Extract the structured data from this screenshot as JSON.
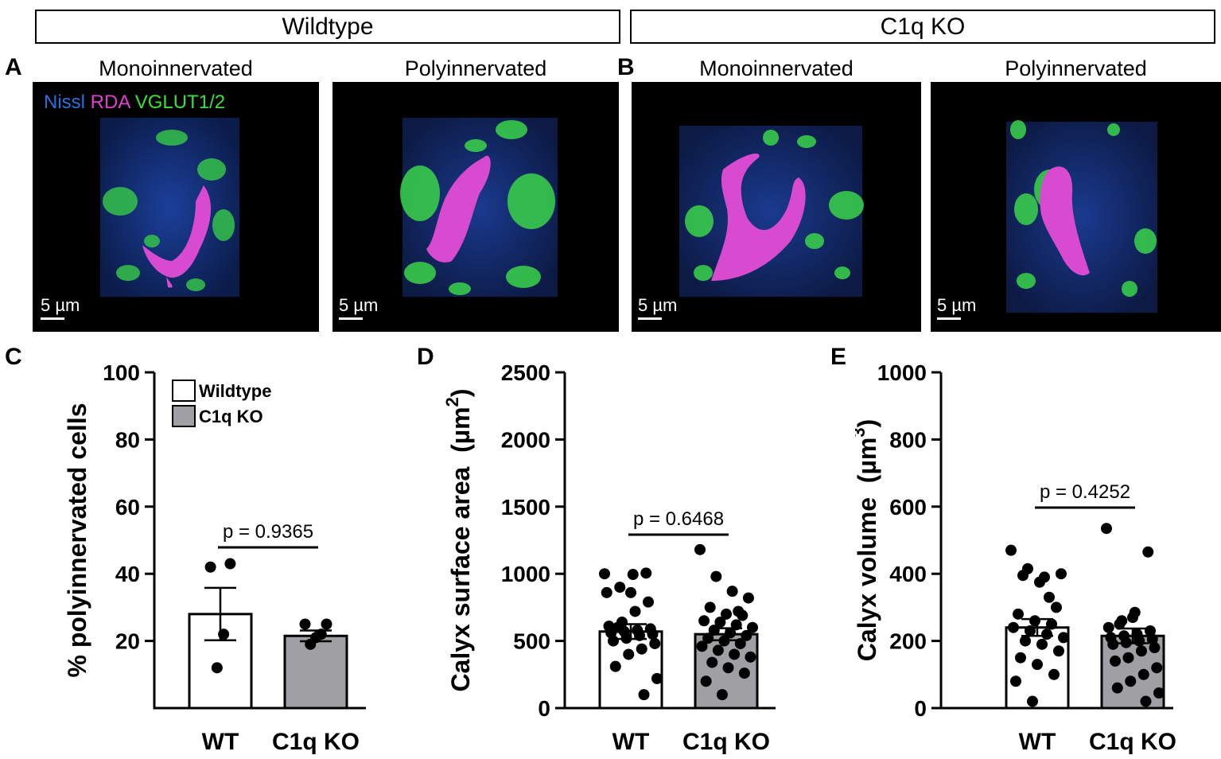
{
  "groups": {
    "wildtype": "Wildtype",
    "c1q_ko": "C1q KO"
  },
  "panels": {
    "A": "A",
    "B": "B",
    "C": "C",
    "D": "D",
    "E": "E"
  },
  "images": [
    {
      "title": "Monoinnervated",
      "scale": "5 µm"
    },
    {
      "title": "Polyinnervated",
      "scale": "5 µm"
    },
    {
      "title": "Monoinnervated",
      "scale": "5 µm"
    },
    {
      "title": "Polyinnervated",
      "scale": "5 µm"
    }
  ],
  "stain_legend": {
    "nissl": "Nissl",
    "rda": "RDA",
    "vglut": "VGLUT1/2",
    "colors": {
      "nissl": "#1f6fd6",
      "rda": "#e040d0",
      "vglut": "#38e038"
    }
  },
  "chart_data": [
    {
      "type": "bar",
      "panel": "C",
      "categories": [
        "WT",
        "C1q KO"
      ],
      "ylabel": "% polyinnervated cells",
      "ylim": [
        0,
        100
      ],
      "yticks": [
        20,
        40,
        60,
        80,
        100
      ],
      "bar_values": [
        28,
        21.5
      ],
      "sem": [
        7.8,
        1.6
      ],
      "points": [
        [
          42,
          43,
          22,
          12
        ],
        [
          25,
          25,
          22,
          21,
          19
        ]
      ],
      "pvalue": "p = 0.9365",
      "legend": [
        {
          "name": "Wildtype",
          "color": "#ffffff"
        },
        {
          "name": "C1q KO",
          "color": "#a0a0a4"
        }
      ],
      "bar_colors": [
        "#ffffff",
        "#a0a0a4"
      ]
    },
    {
      "type": "bar",
      "panel": "D",
      "categories": [
        "WT",
        "C1q KO"
      ],
      "ylabel": "Calyx surface area",
      "ylabel_unit": "(µm",
      "ylabel_sup": "2",
      "ylabel_close": ")",
      "ylim": [
        0,
        2500
      ],
      "yticks": [
        0,
        500,
        1000,
        1500,
        2000,
        2500
      ],
      "bar_values": [
        570,
        550
      ],
      "sem": [
        55,
        45
      ],
      "points": [
        [
          1000,
          1005,
          995,
          900,
          860,
          790,
          720,
          640,
          610,
          590,
          580,
          570,
          560,
          550,
          540,
          520,
          500,
          480,
          440,
          400,
          310,
          220,
          100,
          860,
          600
        ],
        [
          1180,
          980,
          870,
          820,
          750,
          700,
          690,
          650,
          640,
          620,
          600,
          580,
          560,
          540,
          520,
          500,
          480,
          460,
          430,
          400,
          380,
          340,
          300,
          260,
          200,
          100,
          720
        ]
      ],
      "pvalue": "p = 0.6468",
      "bar_colors": [
        "#ffffff",
        "#a0a0a4"
      ]
    },
    {
      "type": "bar",
      "panel": "E",
      "categories": [
        "WT",
        "C1q KO"
      ],
      "ylabel": "Calyx volume",
      "ylabel_unit": "(µm",
      "ylabel_sup": "3",
      "ylabel_close": ")",
      "ylim": [
        0,
        1000
      ],
      "yticks": [
        0,
        200,
        400,
        600,
        800,
        1000
      ],
      "bar_values": [
        240,
        215
      ],
      "sem": [
        25,
        22
      ],
      "points": [
        [
          470,
          415,
          390,
          400,
          395,
          375,
          300,
          280,
          260,
          250,
          240,
          230,
          220,
          210,
          200,
          190,
          170,
          150,
          130,
          100,
          80,
          20,
          330
        ],
        [
          535,
          465,
          285,
          260,
          240,
          230,
          220,
          215,
          210,
          205,
          200,
          195,
          190,
          180,
          170,
          150,
          140,
          120,
          100,
          80,
          60,
          45,
          20,
          270,
          250
        ]
      ],
      "pvalue": "p = 0.4252",
      "bar_colors": [
        "#ffffff",
        "#a0a0a4"
      ]
    }
  ]
}
